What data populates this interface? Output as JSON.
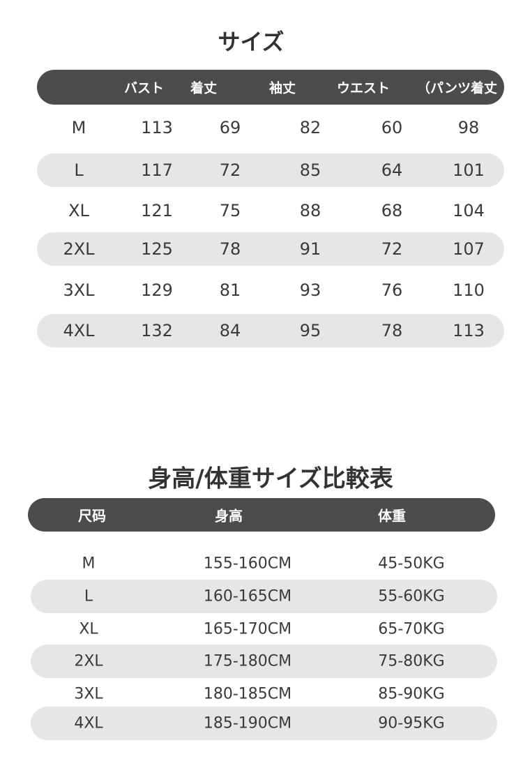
{
  "size_table": {
    "title": "サイズ",
    "header": [
      "バスト",
      "着丈",
      "袖丈",
      "ウエスト",
      "（パンツ着丈"
    ],
    "rows": [
      [
        "M",
        113,
        69,
        82,
        60,
        98
      ],
      [
        "L",
        117,
        72,
        85,
        64,
        101
      ],
      [
        "XL",
        121,
        75,
        88,
        68,
        104
      ],
      [
        "2XL",
        125,
        78,
        91,
        72,
        107
      ],
      [
        "3XL",
        129,
        81,
        93,
        76,
        110
      ],
      [
        "4XL",
        132,
        84,
        95,
        78,
        113
      ]
    ]
  },
  "compare_table": {
    "title": "身高/体重サイズ比較表",
    "header": [
      "尺码",
      "身高",
      "体重"
    ],
    "rows": [
      [
        "M",
        "155-160CM",
        "45-50KG"
      ],
      [
        "L",
        "160-165CM",
        "55-60KG"
      ],
      [
        "XL",
        "165-170CM",
        "65-70KG"
      ],
      [
        "2XL",
        "175-180CM",
        "75-80KG"
      ],
      [
        "3XL",
        "180-185CM",
        "85-90KG"
      ],
      [
        "4XL",
        "185-190CM",
        "90-95KG"
      ]
    ]
  }
}
